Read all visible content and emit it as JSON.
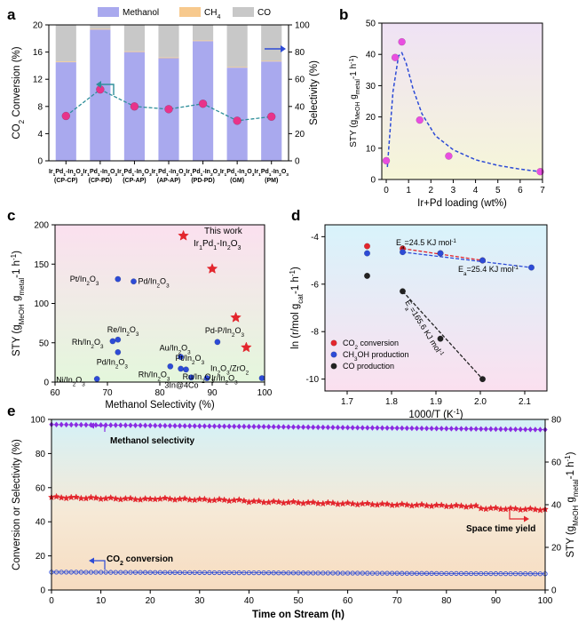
{
  "chart_data": [
    {
      "panel": "a",
      "type": "bar",
      "legend": [
        "Methanol",
        "CH4",
        "CO"
      ],
      "colors": {
        "methanol": "#a9a9ee",
        "ch4": "#f7c98d",
        "co": "#c8c8c8",
        "line": "#2f8f9a",
        "point": "#e8338a"
      },
      "categories": [
        [
          "Ir1Pd1-In2O3",
          "(CP-CP)"
        ],
        [
          "Ir1Pd1-In2O3",
          "(CP-PD)"
        ],
        [
          "Ir1Pd1-In2O3",
          "(CP-AP)"
        ],
        [
          "Ir1Pd1-In2O3",
          "(AP-AP)"
        ],
        [
          "Ir1Pd1-In2O3",
          "(PD-PD)"
        ],
        [
          "Ir1Pd1-In2O3",
          "(GM)"
        ],
        [
          "Ir1Pd1-In2O3",
          "(PM)"
        ]
      ],
      "highlight_index": 1,
      "methanol_selectivity": [
        72.5,
        96.5,
        80,
        75.5,
        88,
        68.5,
        73
      ],
      "ch4_selectivity": [
        0.5,
        0.5,
        0.5,
        0.5,
        0.5,
        0.5,
        0.5
      ],
      "co2_conversion": [
        6.6,
        10.5,
        8.0,
        7.6,
        8.4,
        5.9,
        6.5
      ],
      "ylabel_left": "CO2 Conversion (%)",
      "ylabel_right": "Selectivity (%)",
      "ylim_left": [
        0,
        20
      ],
      "ylim_right": [
        0,
        100
      ],
      "yticks_left": [
        "0",
        "4",
        "8",
        "12",
        "16",
        "20"
      ],
      "yticks_right": [
        "0",
        "20",
        "40",
        "60",
        "80",
        "100"
      ]
    },
    {
      "panel": "b",
      "type": "scatter",
      "x": [
        0,
        0.4,
        0.7,
        1.5,
        2.8,
        6.9
      ],
      "y": [
        6,
        39,
        44,
        19,
        7.5,
        2.5
      ],
      "fit_curve": [
        [
          0.05,
          4
        ],
        [
          0.3,
          28
        ],
        [
          0.55,
          39.5
        ],
        [
          0.7,
          40.5
        ],
        [
          0.9,
          37
        ],
        [
          1.2,
          29
        ],
        [
          1.6,
          21
        ],
        [
          2.2,
          14
        ],
        [
          3,
          9.5
        ],
        [
          4,
          6.3
        ],
        [
          5,
          4.5
        ],
        [
          6,
          3.3
        ],
        [
          6.9,
          2.5
        ]
      ],
      "xlabel": "Ir+Pd loading (wt%)",
      "ylabel": "STY (gMeOH gmetal-1 h-1)",
      "xlim": [
        -0.2,
        7
      ],
      "ylim": [
        0,
        50
      ],
      "xticks": [
        "0",
        "1",
        "2",
        "3",
        "4",
        "5",
        "6",
        "7"
      ],
      "yticks": [
        "0",
        "10",
        "20",
        "30",
        "40",
        "50"
      ]
    },
    {
      "panel": "c",
      "type": "scatter",
      "xlabel": "Methanol Selectivity (%)",
      "ylabel": "STY (gMeOH gmetal-1 h-1)",
      "xlim": [
        60,
        100
      ],
      "ylim": [
        0,
        200
      ],
      "xticks": [
        "60",
        "70",
        "80",
        "90",
        "100"
      ],
      "yticks": [
        "0",
        "50",
        "100",
        "150",
        "200"
      ],
      "this_work_label": [
        "This work",
        "Ir1Pd1-In2O3"
      ],
      "this_work": [
        [
          84.5,
          186
        ],
        [
          90,
          144
        ],
        [
          94.5,
          82
        ],
        [
          96.5,
          44
        ]
      ],
      "reference_points": [
        {
          "label": "Pt/In2O3",
          "x": 72,
          "y": 131
        },
        {
          "label": "Pd/In2O3",
          "x": 75,
          "y": 128
        },
        {
          "label": "Re/In2O3",
          "x": 72,
          "y": 54
        },
        {
          "label": "Rh/In2O3",
          "x": 71,
          "y": 52
        },
        {
          "label": "Pd/In2O3",
          "x": 72,
          "y": 38
        },
        {
          "label": "Ni/In2O3",
          "x": 68,
          "y": 4
        },
        {
          "label": "Au/In2O3",
          "x": 84,
          "y": 32
        },
        {
          "label": "Rh/In2O3",
          "x": 82,
          "y": 20
        },
        {
          "label": "Pt/In2O3",
          "x": 85,
          "y": 16
        },
        {
          "label": "Ru/In2O3",
          "x": 84,
          "y": 17
        },
        {
          "label": "3In@4Co",
          "x": 86,
          "y": 6
        },
        {
          "label": "Pd-P/In2O3",
          "x": 91,
          "y": 51
        },
        {
          "label": "Ir/In2O3",
          "x": 89,
          "y": 5
        },
        {
          "label": "In2O3/ZrO2",
          "x": 99.5,
          "y": 5
        }
      ],
      "colors": {
        "this_work": "#e3262d",
        "reference": "#2d4bd6"
      }
    },
    {
      "panel": "d",
      "type": "scatter",
      "xlabel": "1000/T (K-1)",
      "ylabel": "ln (r/mol gcat-1 h-1)",
      "xlim": [
        1.65,
        2.15
      ],
      "ylim": [
        -10.5,
        -3.5
      ],
      "xticks": [
        "1.7",
        "1.8",
        "1.9",
        "2.0",
        "2.1"
      ],
      "yticks": [
        "-4",
        "-6",
        "-8",
        "-10"
      ],
      "series": [
        {
          "name": "CO2 conversion",
          "color": "#e3262d",
          "x": [
            1.745,
            1.825,
            1.91,
            2.005
          ],
          "y": [
            -4.4,
            -4.5,
            -4.7,
            -5.0
          ],
          "ea": "Ea=24.5 KJ mol-1"
        },
        {
          "name": "CH3OH production",
          "color": "#2d4bd6",
          "x": [
            1.745,
            1.825,
            1.91,
            2.005,
            2.115
          ],
          "y": [
            -4.7,
            -4.65,
            -4.7,
            -5.0,
            -5.3
          ],
          "ea": "Ea=25.4 KJ mol-1"
        },
        {
          "name": "CO production",
          "color": "#222222",
          "x": [
            1.745,
            1.825,
            1.91,
            2.005
          ],
          "y": [
            -5.65,
            -6.3,
            -8.3,
            -10.0
          ],
          "ea": "Ea=165.6 KJ mol-1"
        }
      ]
    },
    {
      "panel": "e",
      "type": "line",
      "xlabel": "Time on Stream (h)",
      "ylabel_left": "Conversion or Selectivity (%)",
      "ylabel_right": "STY (gMeOH gmetal-1 h-1)",
      "xlim": [
        0,
        100
      ],
      "ylim_left": [
        0,
        100
      ],
      "ylim_right": [
        0,
        80
      ],
      "xticks": [
        "0",
        "10",
        "20",
        "30",
        "40",
        "50",
        "60",
        "70",
        "80",
        "90",
        "100"
      ],
      "yticks_left": [
        "0",
        "20",
        "40",
        "60",
        "80",
        "100"
      ],
      "yticks_right": [
        "0",
        "20",
        "40",
        "60",
        "80"
      ],
      "series": [
        {
          "name": "Methanol selectivity",
          "color": "#8a2be2",
          "marker": "diamond",
          "axis": "left",
          "start": 97,
          "end": 94
        },
        {
          "name": "Space time yield",
          "color": "#e3262d",
          "marker": "star",
          "axis": "right",
          "start": 43.5,
          "end": 38.5
        },
        {
          "name": "CO2 conversion",
          "color": "#2d4bd6",
          "marker": "circle",
          "axis": "left",
          "start": 10.5,
          "end": 9.5
        }
      ]
    }
  ]
}
